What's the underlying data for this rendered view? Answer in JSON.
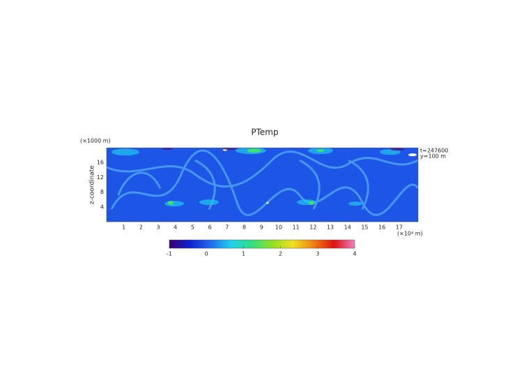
{
  "chart_data": {
    "type": "heatmap",
    "title": "PTemp",
    "y_unit": "(×1000 m)",
    "ylabel": "z-coordinate",
    "x_unit": "(×10⁴ m)",
    "annotations": [
      "t=247600",
      "y=100 m"
    ],
    "xlim": [
      0,
      18.1
    ],
    "xticks": [
      1,
      2,
      3,
      4,
      5,
      6,
      7,
      8,
      9,
      10,
      11,
      12,
      13,
      14,
      15,
      16,
      17
    ],
    "ylim": [
      0,
      20
    ],
    "yticks": [
      4,
      8,
      12,
      16
    ],
    "colorbar": {
      "lim": [
        -1,
        4
      ],
      "ticks": [
        -1,
        0,
        1,
        2,
        3,
        4
      ],
      "colors": [
        "#3a0070",
        "#1020d0",
        "#1e6cf0",
        "#20d0f0",
        "#30e080",
        "#90e020",
        "#f0e020",
        "#f08010",
        "#e01010",
        "#f080c0"
      ]
    }
  }
}
